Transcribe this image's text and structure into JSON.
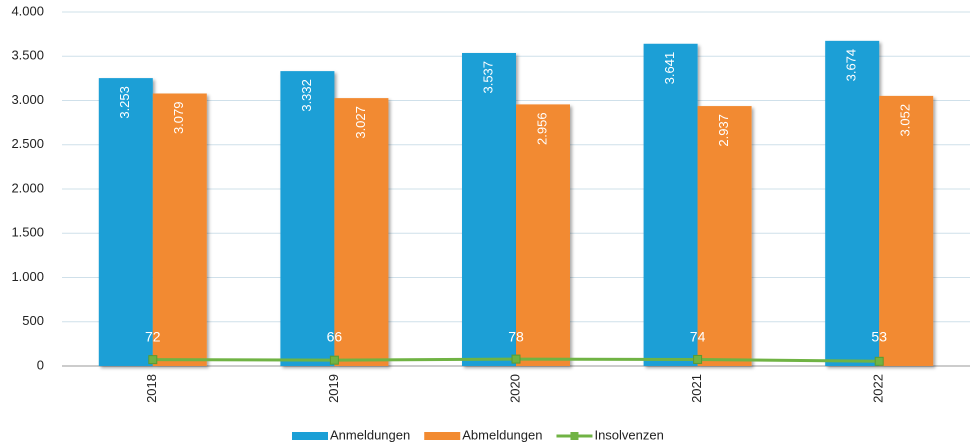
{
  "chart_data": {
    "type": "bar",
    "categories": [
      "2018",
      "2019",
      "2020",
      "2021",
      "2022"
    ],
    "series": [
      {
        "name": "Anmeldungen",
        "color": "#1a9fd6",
        "type": "bar",
        "values": [
          3253,
          3332,
          3537,
          3641,
          3674
        ],
        "value_labels": [
          "3.253",
          "3.332",
          "3.537",
          "3.641",
          "3.674"
        ]
      },
      {
        "name": "Abmeldungen",
        "color": "#f28a30",
        "type": "bar",
        "values": [
          3079,
          3027,
          2956,
          2937,
          3052
        ],
        "value_labels": [
          "3.079",
          "3.027",
          "2.956",
          "2.937",
          "3.052"
        ]
      },
      {
        "name": "Insolvenzen",
        "color": "#70b344",
        "type": "line",
        "values": [
          72,
          66,
          78,
          74,
          53
        ]
      }
    ],
    "ylim": [
      0,
      4000
    ],
    "yticks": [
      0,
      500,
      {
        "value": 1000,
        "label": "1.000"
      },
      {
        "value": 1500,
        "label": "1.500"
      },
      {
        "value": 2000,
        "label": "2.000"
      },
      {
        "value": 2500,
        "label": "2.500"
      },
      {
        "value": 3000,
        "label": "3.000"
      },
      {
        "value": 3500,
        "label": "3.500"
      },
      {
        "value": 4000,
        "label": "4.000"
      }
    ],
    "grid": true,
    "legend": "bottom"
  }
}
